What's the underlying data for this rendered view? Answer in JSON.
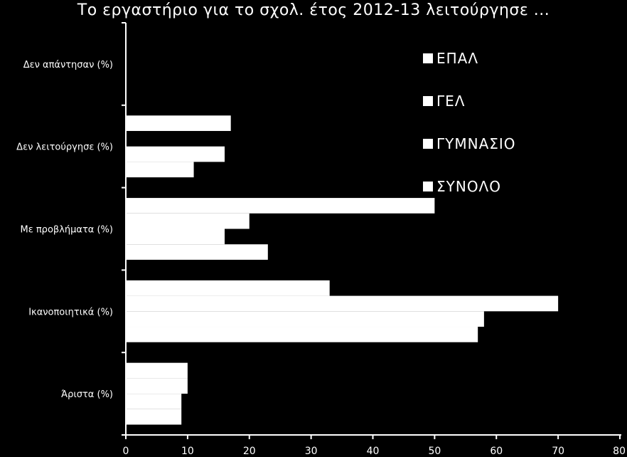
{
  "chart_data": {
    "type": "bar",
    "orientation": "horizontal",
    "title": "Το εργαστήριο για το σχολ. έτος 2012-13 λειτούργησε ...",
    "categories": [
      "Δεν απάντησαν (%)",
      "Δεν λειτούργησε (%)",
      "Με προβλήματα (%)",
      "Ικανοποιητικά (%)",
      "Άριστα (%)"
    ],
    "series": [
      {
        "name": "ΕΠΑΛ",
        "values": [
          0,
          17,
          50,
          33,
          10
        ]
      },
      {
        "name": "ΓΕΛ",
        "values": [
          0,
          0,
          20,
          70,
          10
        ]
      },
      {
        "name": "ΓΥΜΝΑΣΙΟ",
        "values": [
          0,
          16,
          16,
          58,
          9
        ]
      },
      {
        "name": "ΣΥΝΟΛΟ",
        "values": [
          0,
          11,
          23,
          57,
          9
        ]
      }
    ],
    "xlim": [
      0,
      80
    ],
    "xticks": [
      "0",
      "10",
      "20",
      "30",
      "40",
      "50",
      "60",
      "70",
      "80"
    ],
    "grid": false,
    "legend": "top-right",
    "colors": {
      "background": "#000000",
      "bars": "#ffffff",
      "text": "#ffffff"
    }
  }
}
